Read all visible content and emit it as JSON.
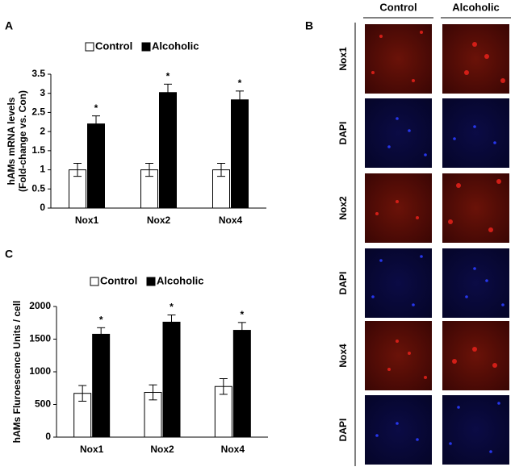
{
  "chart_data": [
    {
      "type": "bar",
      "panel": "A",
      "ylabel": [
        "hAMs mRNA levels",
        "(Fold-change vs. Con)"
      ],
      "categories": [
        "Nox1",
        "Nox2",
        "Nox4"
      ],
      "series": [
        {
          "name": "Control",
          "color": "#ffffff",
          "values": [
            1.0,
            1.0,
            1.0
          ],
          "errors": [
            0.17,
            0.17,
            0.17
          ]
        },
        {
          "name": "Alcoholic",
          "color": "#000000",
          "values": [
            2.2,
            3.02,
            2.83
          ],
          "errors": [
            0.21,
            0.22,
            0.23
          ]
        }
      ],
      "significance": [
        "*",
        "*",
        "*"
      ],
      "ylim": [
        0,
        3.5
      ],
      "yticks": [
        0,
        0.5,
        1,
        1.5,
        2,
        2.5,
        3,
        3.5
      ],
      "legend": "top"
    },
    {
      "type": "bar",
      "panel": "C",
      "ylabel": [
        "hAMs Fluroescence Units / cell"
      ],
      "categories": [
        "Nox1",
        "Nox2",
        "Nox4"
      ],
      "series": [
        {
          "name": "Control",
          "color": "#ffffff",
          "values": [
            670,
            685,
            775
          ],
          "errors": [
            120,
            115,
            120
          ]
        },
        {
          "name": "Alcoholic",
          "color": "#000000",
          "values": [
            1575,
            1760,
            1635
          ],
          "errors": [
            100,
            110,
            120
          ]
        }
      ],
      "significance": [
        "*",
        "*",
        "*"
      ],
      "ylim": [
        0,
        2000
      ],
      "yticks": [
        0,
        500,
        1000,
        1500,
        2000
      ],
      "legend": "top"
    }
  ],
  "panel_b": {
    "label": "B",
    "columns": [
      "Control",
      "Alcoholic"
    ],
    "rows": [
      "Nox1",
      "DAPI",
      "Nox2",
      "DAPI",
      "Nox4",
      "DAPI"
    ]
  }
}
